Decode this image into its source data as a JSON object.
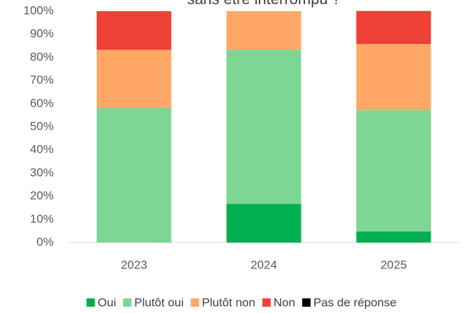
{
  "chart_data": {
    "type": "stacked_bar",
    "title": "sans être interrompu ?",
    "categories": [
      "2023",
      "2024",
      "2025"
    ],
    "series": [
      {
        "name": "Oui",
        "color": "#00b050",
        "values": [
          0,
          16.7,
          4.8
        ]
      },
      {
        "name": "Plutôt oui",
        "color": "#7dd694",
        "values": [
          58.3,
          66.7,
          52.4
        ]
      },
      {
        "name": "Plutôt non",
        "color": "#ffa866",
        "values": [
          25,
          16.6,
          28.6
        ]
      },
      {
        "name": "Non",
        "color": "#ee4136",
        "values": [
          16.7,
          0,
          14.3
        ]
      },
      {
        "name": "Pas de réponse",
        "color": "#000000",
        "values": [
          0,
          0,
          0
        ]
      }
    ],
    "ylim": [
      0,
      100
    ],
    "yticks": [
      {
        "value": 0,
        "label": "0%"
      },
      {
        "value": 10,
        "label": "10%"
      },
      {
        "value": 20,
        "label": "20%"
      },
      {
        "value": 30,
        "label": "30%"
      },
      {
        "value": 40,
        "label": "40%"
      },
      {
        "value": 50,
        "label": "50%"
      },
      {
        "value": 60,
        "label": "60%"
      },
      {
        "value": 70,
        "label": "70%"
      },
      {
        "value": 80,
        "label": "80%"
      },
      {
        "value": 90,
        "label": "90%"
      },
      {
        "value": 100,
        "label": "100%"
      }
    ],
    "grid": false,
    "legend": "bottom"
  }
}
